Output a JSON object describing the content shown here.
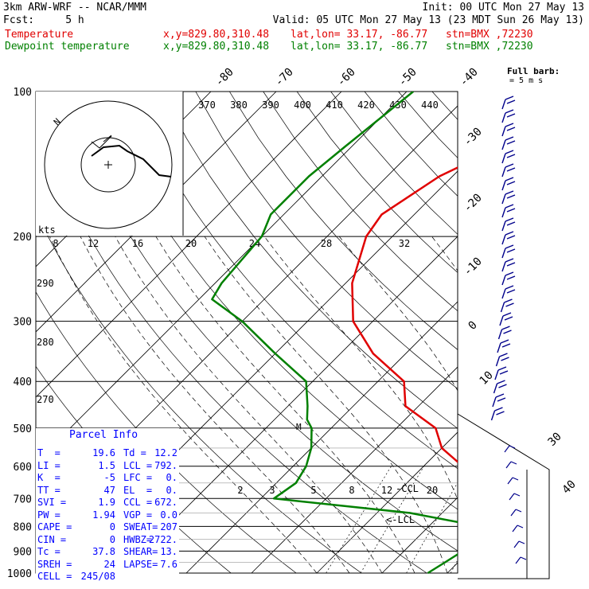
{
  "header": {
    "line1_left": "3km ARW-WRF -- NCAR/MMM",
    "line1_right": "Init: 00 UTC Mon 27 May 13",
    "line2_left": "Fcst:     5 h",
    "line2_right": "Valid: 05 UTC Mon 27 May 13 (23 MDT Sun 26 May 13)",
    "series": [
      {
        "name": "Temperature",
        "coords": "x,y=829.80,310.48",
        "latlon": "lat,lon= 33.17, -86.77",
        "stn": "stn=BMX ,72230",
        "color": "#e00000"
      },
      {
        "name": "Dewpoint temperature",
        "coords": "x,y=829.80,310.48",
        "latlon": "lat,lon= 33.17, -86.77",
        "stn": "stn=BMX ,72230",
        "color": "#008000"
      }
    ]
  },
  "chart_data": {
    "type": "line",
    "subtype": "skew-T log-p sounding",
    "pressure_ticks": [
      100,
      200,
      300,
      400,
      500,
      600,
      700,
      800,
      900,
      1000
    ],
    "temperature_labels": [
      -80,
      -70,
      -60,
      -50,
      -40,
      -30,
      -20,
      -10,
      0,
      10,
      20,
      30,
      40
    ],
    "theta_labels": [
      370,
      380,
      390,
      400,
      410,
      420,
      430,
      440
    ],
    "theta_left_labels": [
      290,
      280,
      270
    ],
    "mixing_ratio_labels": [
      2,
      3,
      5,
      8,
      12,
      20
    ],
    "hodograph_speed_labels": [
      "kts",
      "8",
      "12",
      "16",
      "20",
      "24",
      "28",
      "32"
    ],
    "barb_title": "Full barb",
    "barb_unit": "= 5 m s",
    "markers": [
      {
        "label": "CCL",
        "p": 700
      },
      {
        "label": "LCL",
        "p": 790
      },
      {
        "label": "M",
        "p": 500
      }
    ],
    "series": [
      {
        "name": "Temperature",
        "color": "#e00000",
        "points": [
          [
            100,
            -41
          ],
          [
            130,
            -47
          ],
          [
            150,
            -52
          ],
          [
            180,
            -55
          ],
          [
            200,
            -54
          ],
          [
            250,
            -49
          ],
          [
            300,
            -43
          ],
          [
            350,
            -35
          ],
          [
            400,
            -26
          ],
          [
            450,
            -22
          ],
          [
            500,
            -14
          ],
          [
            550,
            -10
          ],
          [
            600,
            -4
          ],
          [
            650,
            1
          ],
          [
            700,
            4
          ],
          [
            750,
            6
          ],
          [
            800,
            7
          ],
          [
            850,
            10
          ],
          [
            900,
            14
          ],
          [
            950,
            18
          ],
          [
            975,
            20
          ],
          [
            990,
            19
          ],
          [
            1000,
            12
          ]
        ]
      },
      {
        "name": "Dewpoint temperature",
        "color": "#008000",
        "points": [
          [
            100,
            -69
          ],
          [
            130,
            -71
          ],
          [
            150,
            -72
          ],
          [
            180,
            -72
          ],
          [
            200,
            -70
          ],
          [
            250,
            -69
          ],
          [
            270,
            -68
          ],
          [
            300,
            -60
          ],
          [
            350,
            -50
          ],
          [
            400,
            -41
          ],
          [
            450,
            -37
          ],
          [
            480,
            -35
          ],
          [
            500,
            -33
          ],
          [
            550,
            -30
          ],
          [
            600,
            -28
          ],
          [
            650,
            -27
          ],
          [
            700,
            -28
          ],
          [
            750,
            -5
          ],
          [
            800,
            8
          ],
          [
            850,
            10
          ],
          [
            900,
            9
          ],
          [
            950,
            8
          ],
          [
            1000,
            7
          ]
        ]
      }
    ]
  },
  "parcel_info": {
    "title": "Parcel Info",
    "rows": [
      [
        "T  =",
        "19.6",
        "Td =",
        "12.2"
      ],
      [
        "LI =",
        "1.5",
        "LCL =",
        "792."
      ],
      [
        "K  =",
        "-5",
        "LFC =",
        "0."
      ],
      [
        "TT =",
        "47",
        "EL  =",
        "0."
      ],
      [
        "SVI =",
        "1.9",
        "CCL =",
        "672."
      ],
      [
        "PW =",
        "1.94",
        "VGP =",
        "0.0"
      ],
      [
        "CAPE =",
        "0",
        "SWEAT=",
        "207"
      ],
      [
        "CIN =",
        "0",
        "HWBZ=",
        "2722."
      ],
      [
        "Tc =",
        "37.8",
        "SHEAR=",
        "13."
      ],
      [
        "SREH =",
        "24",
        "LAPSE=",
        "7.6"
      ],
      [
        "CELL =",
        "245/08",
        "",
        ""
      ]
    ]
  }
}
